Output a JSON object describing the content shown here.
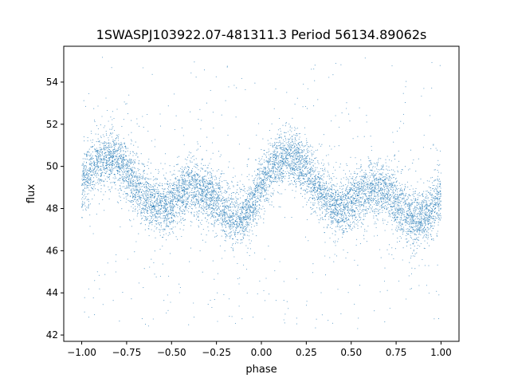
{
  "chart_data": {
    "type": "scatter",
    "title": "1SWASPJ103922.07-481311.3 Period 56134.89062s",
    "xlabel": "phase",
    "ylabel": "flux",
    "xlim": [
      -1.1,
      1.1
    ],
    "ylim": [
      41.7,
      55.7
    ],
    "x_ticks": [
      {
        "value": -1.0,
        "label": "−1.00"
      },
      {
        "value": -0.75,
        "label": "−0.75"
      },
      {
        "value": -0.5,
        "label": "−0.50"
      },
      {
        "value": -0.25,
        "label": "−0.25"
      },
      {
        "value": 0.0,
        "label": "0.00"
      },
      {
        "value": 0.25,
        "label": "0.25"
      },
      {
        "value": 0.5,
        "label": "0.50"
      },
      {
        "value": 0.75,
        "label": "0.75"
      },
      {
        "value": 1.0,
        "label": "1.00"
      }
    ],
    "y_ticks": [
      {
        "value": 42,
        "label": "42"
      },
      {
        "value": 44,
        "label": "44"
      },
      {
        "value": 46,
        "label": "46"
      },
      {
        "value": 48,
        "label": "48"
      },
      {
        "value": 50,
        "label": "50"
      },
      {
        "value": 52,
        "label": "52"
      },
      {
        "value": 54,
        "label": "54"
      }
    ],
    "grid": false,
    "legend": "none",
    "point_color": "#1f77b4",
    "phase_range": [
      -1.0,
      1.0
    ],
    "curve_points": [
      [
        -1.0,
        49.2
      ],
      [
        -0.95,
        49.8
      ],
      [
        -0.9,
        50.3
      ],
      [
        -0.85,
        50.5
      ],
      [
        -0.8,
        50.3
      ],
      [
        -0.75,
        49.8
      ],
      [
        -0.7,
        49.1
      ],
      [
        -0.65,
        48.6
      ],
      [
        -0.6,
        48.2
      ],
      [
        -0.55,
        48.1
      ],
      [
        -0.5,
        48.3
      ],
      [
        -0.45,
        48.7
      ],
      [
        -0.4,
        48.9
      ],
      [
        -0.35,
        48.9
      ],
      [
        -0.3,
        48.7
      ],
      [
        -0.25,
        48.3
      ],
      [
        -0.2,
        47.8
      ],
      [
        -0.15,
        47.5
      ],
      [
        -0.1,
        47.6
      ],
      [
        -0.05,
        48.2
      ],
      [
        0.0,
        49.1
      ],
      [
        0.05,
        49.8
      ],
      [
        0.1,
        50.3
      ],
      [
        0.15,
        50.5
      ],
      [
        0.2,
        50.3
      ],
      [
        0.25,
        49.8
      ],
      [
        0.3,
        49.1
      ],
      [
        0.35,
        48.6
      ],
      [
        0.4,
        48.2
      ],
      [
        0.45,
        48.1
      ],
      [
        0.5,
        48.3
      ],
      [
        0.55,
        48.7
      ],
      [
        0.6,
        48.9
      ],
      [
        0.65,
        48.9
      ],
      [
        0.7,
        48.7
      ],
      [
        0.75,
        48.3
      ],
      [
        0.8,
        47.8
      ],
      [
        0.85,
        47.5
      ],
      [
        0.9,
        47.6
      ],
      [
        0.95,
        48.0
      ],
      [
        1.0,
        48.6
      ]
    ],
    "scatter_sd": 0.65
  }
}
